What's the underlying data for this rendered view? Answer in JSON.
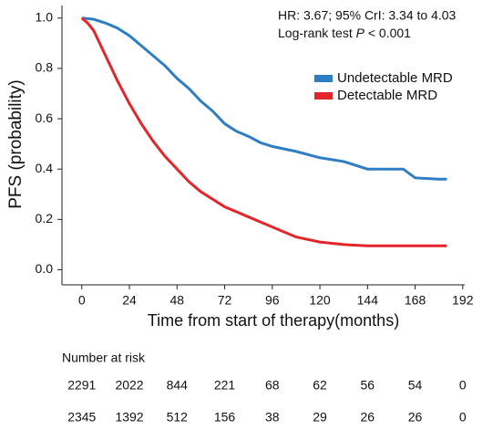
{
  "chart_data": {
    "type": "line",
    "annotations": [
      "HR: 3.67; 95% CrI: 3.34 to 4.03",
      [
        "Log-rank test ",
        "P",
        " < 0.001"
      ]
    ],
    "xlabel": "Time from start of therapy(months)",
    "ylabel": "PFS (probability)",
    "xlim": [
      -10,
      193
    ],
    "ylim": [
      -0.06,
      1.05
    ],
    "xticks": [
      0,
      24,
      48,
      72,
      96,
      120,
      144,
      168,
      192
    ],
    "yticks": [
      {
        "value": 0,
        "label": "0.0"
      },
      0.2,
      0.4,
      0.6,
      0.8,
      {
        "value": 1,
        "label": "1.0"
      }
    ],
    "legend": "upper right",
    "risk_title": "Number at risk",
    "series": [
      {
        "name": "Undetectable MRD",
        "color": "#2e7ec3",
        "x": [
          0,
          6,
          12,
          18,
          24,
          30,
          36,
          42,
          48,
          54,
          60,
          66,
          72,
          78,
          84,
          90,
          96,
          108,
          120,
          132,
          138,
          144,
          156,
          162,
          168,
          180,
          184
        ],
        "values": [
          1.0,
          0.995,
          0.98,
          0.96,
          0.93,
          0.89,
          0.85,
          0.81,
          0.76,
          0.72,
          0.67,
          0.63,
          0.58,
          0.55,
          0.53,
          0.505,
          0.49,
          0.47,
          0.445,
          0.43,
          0.415,
          0.4,
          0.4,
          0.4,
          0.365,
          0.36,
          0.36
        ],
        "at_risk": [
          2291,
          2022,
          844,
          221,
          68,
          62,
          56,
          54,
          0
        ]
      },
      {
        "name": "Detectable MRD",
        "color": "#e3262a",
        "x": [
          0,
          3,
          6,
          12,
          18,
          24,
          30,
          36,
          42,
          48,
          54,
          60,
          66,
          72,
          78,
          84,
          90,
          96,
          102,
          108,
          120,
          132,
          144,
          168,
          184
        ],
        "values": [
          1.0,
          0.98,
          0.95,
          0.85,
          0.75,
          0.66,
          0.58,
          0.51,
          0.45,
          0.4,
          0.35,
          0.31,
          0.28,
          0.25,
          0.23,
          0.21,
          0.19,
          0.17,
          0.15,
          0.13,
          0.11,
          0.1,
          0.095,
          0.095,
          0.095
        ],
        "at_risk": [
          2345,
          1392,
          512,
          156,
          38,
          29,
          26,
          26,
          0
        ]
      }
    ]
  }
}
